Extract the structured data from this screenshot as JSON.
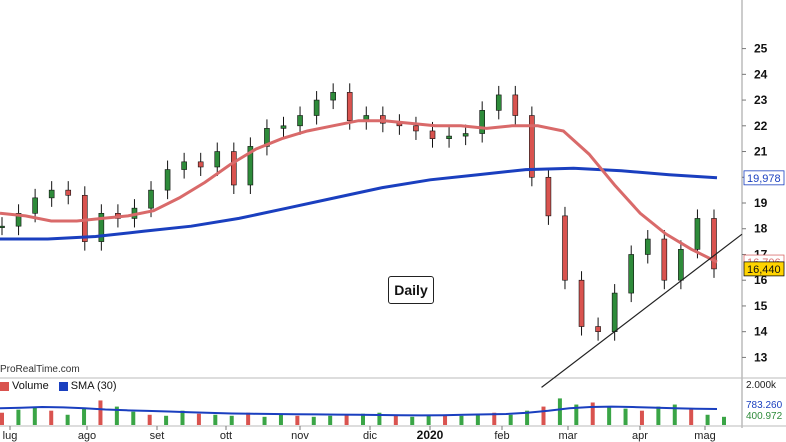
{
  "chart_data": {
    "type": "line",
    "period_label": "Daily",
    "credit": "ProRealTime.com",
    "price_axis": {
      "ylim": [
        12.2,
        26.5
      ],
      "ticks": [
        13,
        14,
        15,
        16,
        17,
        18,
        19,
        20,
        21,
        22,
        23,
        24,
        25
      ]
    },
    "last_values": {
      "sma_slow": "19,978",
      "sma_fast": "16,706",
      "price": "16,440"
    },
    "months": [
      "lug",
      "ago",
      "set",
      "ott",
      "nov",
      "dic",
      "2020",
      "feb",
      "mar",
      "apr",
      "mag"
    ],
    "price_series": [
      {
        "month": "lug",
        "x": 0,
        "close": 18.1
      },
      {
        "month": "lug",
        "x": 1,
        "close": 18.6
      },
      {
        "month": "lug",
        "x": 2,
        "close": 19.2
      },
      {
        "month": "lug",
        "x": 3,
        "close": 19.5
      },
      {
        "month": "lug",
        "x": 4,
        "close": 19.3
      },
      {
        "month": "ago",
        "x": 5,
        "close": 17.5
      },
      {
        "month": "ago",
        "x": 6,
        "close": 18.6
      },
      {
        "month": "ago",
        "x": 7,
        "close": 18.4
      },
      {
        "month": "ago",
        "x": 8,
        "close": 18.8
      },
      {
        "month": "set",
        "x": 9,
        "close": 19.5
      },
      {
        "month": "set",
        "x": 10,
        "close": 20.3
      },
      {
        "month": "set",
        "x": 11,
        "close": 20.6
      },
      {
        "month": "set",
        "x": 12,
        "close": 20.4
      },
      {
        "month": "ott",
        "x": 13,
        "close": 21.0
      },
      {
        "month": "ott",
        "x": 14,
        "close": 19.7
      },
      {
        "month": "ott",
        "x": 15,
        "close": 21.2
      },
      {
        "month": "ott",
        "x": 16,
        "close": 21.9
      },
      {
        "month": "nov",
        "x": 17,
        "close": 22.0
      },
      {
        "month": "nov",
        "x": 18,
        "close": 22.4
      },
      {
        "month": "nov",
        "x": 19,
        "close": 23.0
      },
      {
        "month": "nov",
        "x": 20,
        "close": 23.3
      },
      {
        "month": "dic",
        "x": 21,
        "close": 22.2
      },
      {
        "month": "dic",
        "x": 22,
        "close": 22.4
      },
      {
        "month": "dic",
        "x": 23,
        "close": 22.1
      },
      {
        "month": "dic",
        "x": 24,
        "close": 22.0
      },
      {
        "month": "2020",
        "x": 25,
        "close": 21.8
      },
      {
        "month": "2020",
        "x": 26,
        "close": 21.5
      },
      {
        "month": "2020",
        "x": 27,
        "close": 21.6
      },
      {
        "month": "2020",
        "x": 28,
        "close": 21.7
      },
      {
        "month": "feb",
        "x": 29,
        "close": 22.6
      },
      {
        "month": "feb",
        "x": 30,
        "close": 23.2
      },
      {
        "month": "feb",
        "x": 31,
        "close": 22.4
      },
      {
        "month": "mar",
        "x": 32,
        "close": 20.0
      },
      {
        "month": "mar",
        "x": 33,
        "close": 18.5
      },
      {
        "month": "mar",
        "x": 34,
        "close": 16.0
      },
      {
        "month": "mar",
        "x": 35,
        "close": 14.2
      },
      {
        "month": "mar",
        "x": 36,
        "close": 14.0
      },
      {
        "month": "apr",
        "x": 37,
        "close": 15.5
      },
      {
        "month": "apr",
        "x": 38,
        "close": 17.0
      },
      {
        "month": "apr",
        "x": 39,
        "close": 17.6
      },
      {
        "month": "apr",
        "x": 40,
        "close": 16.0
      },
      {
        "month": "apr",
        "x": 41,
        "close": 17.2
      },
      {
        "month": "mag",
        "x": 42,
        "close": 18.4
      },
      {
        "month": "mag",
        "x": 43,
        "close": 16.44
      }
    ],
    "sma_fast_series": [
      18.6,
      18.5,
      18.3,
      18.3,
      18.4,
      18.5,
      18.7,
      19.2,
      19.8,
      20.5,
      21.1,
      21.5,
      21.8,
      22.0,
      22.2,
      22.2,
      22.1,
      22.0,
      22.0,
      21.9,
      22.0,
      22.0,
      21.8,
      20.9,
      19.7,
      18.6,
      17.8,
      17.2,
      16.706
    ],
    "sma_slow_series": [
      17.6,
      17.6,
      17.7,
      17.9,
      18.1,
      18.4,
      18.8,
      19.2,
      19.6,
      19.9,
      20.1,
      20.3,
      20.35,
      20.25,
      20.1,
      19.978
    ],
    "trendline": {
      "start": [
        35,
        13.0
      ],
      "end": [
        45,
        17.4
      ]
    },
    "volume_panel": {
      "legend": [
        {
          "name": "Volume",
          "color": "#d9534f"
        },
        {
          "name": "SMA (30)",
          "color": "#1a3fbf"
        }
      ],
      "axis_label": "2.000k",
      "sma_value": "783.260",
      "volume_value": "400.972",
      "ylim": [
        0,
        2200
      ],
      "volume_values": [
        600,
        750,
        900,
        700,
        500,
        800,
        1200,
        900,
        650,
        500,
        450,
        700,
        550,
        500,
        450,
        600,
        400,
        500,
        450,
        400,
        450,
        500,
        550,
        600,
        450,
        400,
        450,
        500,
        450,
        550,
        600,
        500,
        700,
        900,
        1300,
        1000,
        1100,
        900,
        800,
        700,
        900,
        1000,
        800,
        500,
        400
      ],
      "sma_values": [
        820,
        840,
        880,
        860,
        820,
        760,
        720,
        690,
        660,
        620,
        590,
        560,
        550,
        540,
        530,
        520,
        510,
        500,
        490,
        480,
        470,
        480,
        500,
        520,
        540,
        600,
        700,
        820,
        880,
        900,
        880,
        850,
        820,
        790,
        783.26
      ]
    }
  }
}
